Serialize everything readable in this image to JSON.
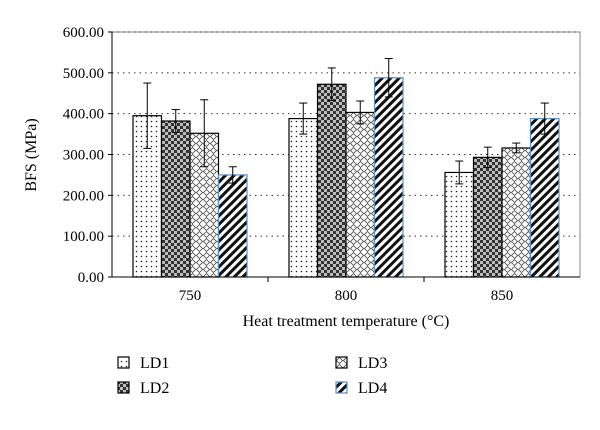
{
  "chart_data": {
    "type": "bar",
    "title": "",
    "xlabel": "Heat treatment temperature (°C)",
    "ylabel": "BFS (MPa)",
    "ylim": [
      0,
      600
    ],
    "y_ticks": [
      "0.00",
      "100.00",
      "200.00",
      "300.00",
      "400.00",
      "500.00",
      "600.00"
    ],
    "categories": [
      "750",
      "800",
      "850"
    ],
    "grid": "horizontal dotted",
    "legend_position": "bottom",
    "series": [
      {
        "name": "LD1",
        "pattern": "dots",
        "edge_color": "#000000",
        "values": [
          395,
          388,
          256
        ],
        "errors": [
          80,
          38,
          28
        ]
      },
      {
        "name": "LD2",
        "pattern": "checker",
        "edge_color": "#000000",
        "values": [
          382,
          472,
          293
        ],
        "errors": [
          28,
          40,
          25
        ]
      },
      {
        "name": "LD3",
        "pattern": "diamond",
        "edge_color": "#000000",
        "values": [
          352,
          403,
          316
        ],
        "errors": [
          82,
          28,
          12
        ]
      },
      {
        "name": "LD4",
        "pattern": "diagonal",
        "edge_color": "#5b8fc9",
        "values": [
          250,
          488,
          388
        ],
        "errors": [
          20,
          47,
          38
        ]
      }
    ]
  }
}
